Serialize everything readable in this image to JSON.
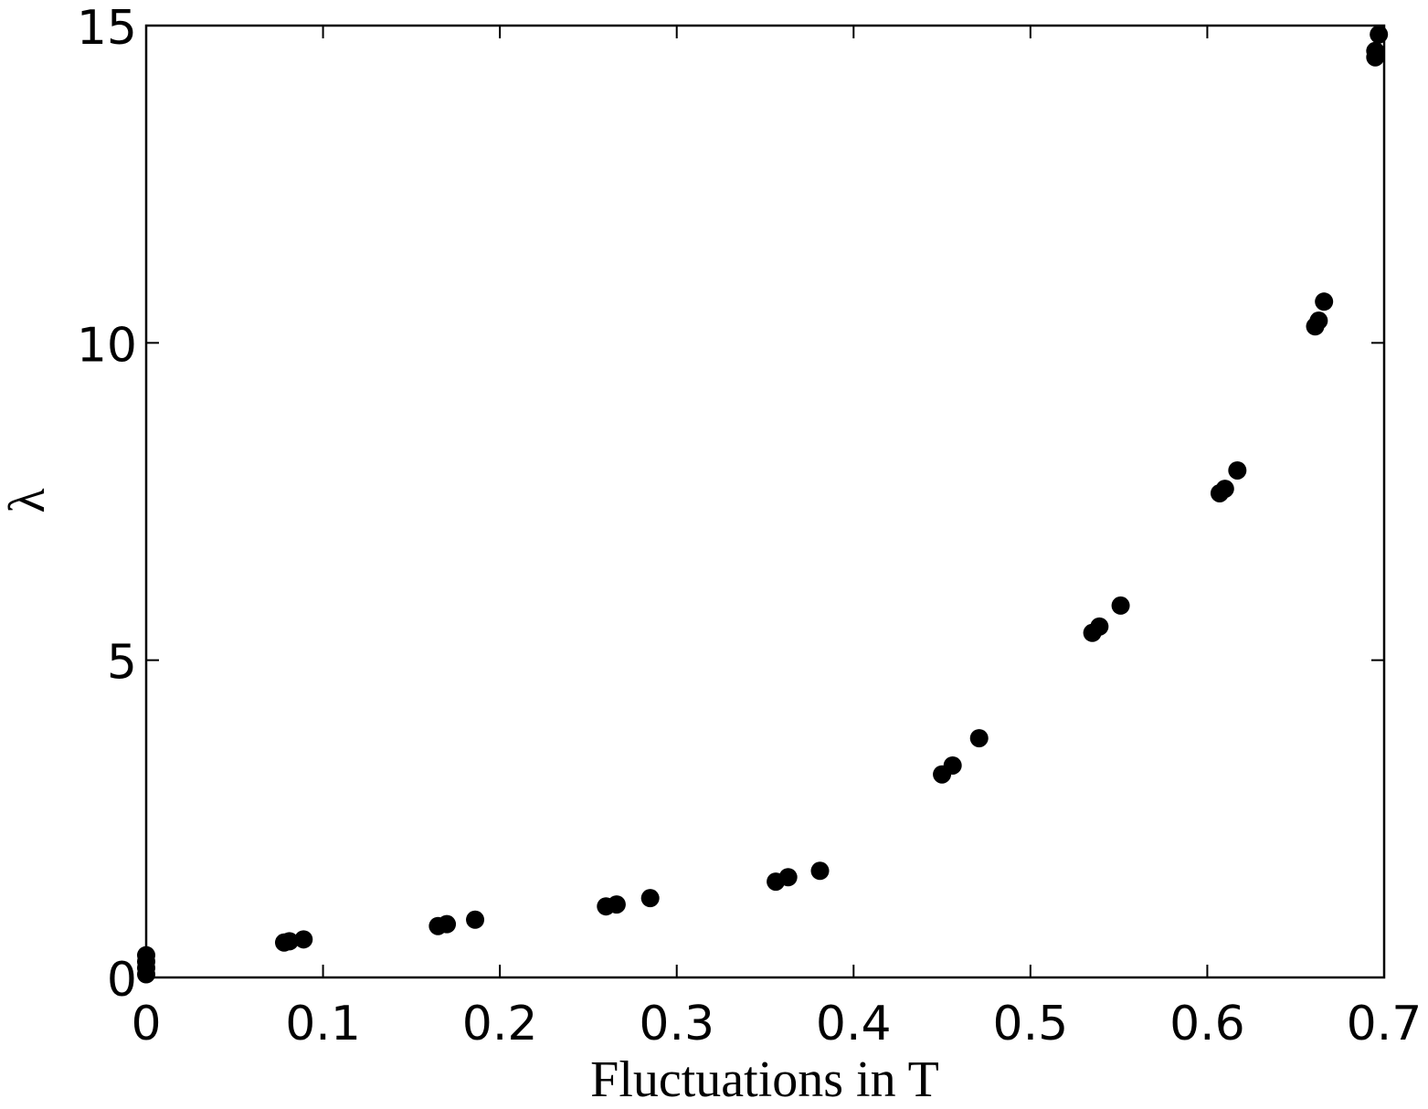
{
  "chart_data": {
    "type": "scatter",
    "xlabel": "Fluctuations in T",
    "ylabel": "λ",
    "x": [
      0,
      0,
      0,
      0,
      0.078,
      0.081,
      0.089,
      0.165,
      0.17,
      0.186,
      0.26,
      0.266,
      0.285,
      0.356,
      0.363,
      0.381,
      0.45,
      0.456,
      0.471,
      0.535,
      0.539,
      0.551,
      0.607,
      0.61,
      0.617,
      0.661,
      0.663,
      0.666,
      0.695,
      0.695,
      0.697
    ],
    "values": [
      0.05,
      0.15,
      0.25,
      0.35,
      0.55,
      0.57,
      0.6,
      0.81,
      0.84,
      0.91,
      1.12,
      1.15,
      1.25,
      1.51,
      1.58,
      1.68,
      3.2,
      3.34,
      3.77,
      5.43,
      5.53,
      5.86,
      7.63,
      7.7,
      7.99,
      10.26,
      10.35,
      10.65,
      14.5,
      14.6,
      14.86
    ],
    "color": "#000000",
    "xlim": [
      0,
      0.7
    ],
    "ylim": [
      0,
      15
    ],
    "xticks": [
      0,
      0.1,
      0.2,
      0.3,
      0.4,
      0.5,
      0.6,
      0.7
    ],
    "yticks": [
      0,
      5,
      10,
      15
    ]
  }
}
